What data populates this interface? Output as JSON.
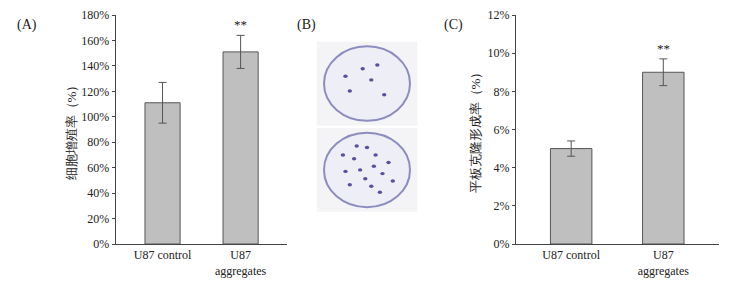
{
  "chart_data": [
    {
      "type": "bar",
      "panel_label": "(A)",
      "y_label": "细胞增殖率（%）",
      "categories": [
        "U87 control",
        "U87 aggregates"
      ],
      "values": [
        111,
        151
      ],
      "errors": [
        16,
        13
      ],
      "color": "#bfbfbf",
      "grid": false,
      "ylim": [
        0,
        180
      ],
      "yticks": [
        {
          "value": 0,
          "label": "0%"
        },
        {
          "value": 20,
          "label": "20%"
        },
        {
          "value": 40,
          "label": "40%"
        },
        {
          "value": 60,
          "label": "60%"
        },
        {
          "value": 80,
          "label": "80%"
        },
        {
          "value": 100,
          "label": "100%"
        },
        {
          "value": 120,
          "label": "120%"
        },
        {
          "value": 140,
          "label": "140%"
        },
        {
          "value": 160,
          "label": "160%"
        },
        {
          "value": 180,
          "label": "180%"
        }
      ],
      "annotations": [
        {
          "category": "U87 aggregates",
          "text": "**"
        }
      ]
    },
    {
      "type": "image",
      "panel_label": "(B)"
    },
    {
      "type": "bar",
      "panel_label": "(C)",
      "y_label": "平板克隆形成率（%）",
      "categories": [
        "U87 control",
        "U87 aggregates"
      ],
      "values": [
        5.0,
        9.0
      ],
      "errors": [
        0.4,
        0.7
      ],
      "color": "#bfbfbf",
      "grid": false,
      "ylim": [
        0,
        12
      ],
      "yticks": [
        {
          "value": 0,
          "label": "0%"
        },
        {
          "value": 2,
          "label": "2%"
        },
        {
          "value": 4,
          "label": "4%"
        },
        {
          "value": 6,
          "label": "6%"
        },
        {
          "value": 8,
          "label": "8%"
        },
        {
          "value": 10,
          "label": "10%"
        },
        {
          "value": 12,
          "label": "12%"
        }
      ],
      "annotations": [
        {
          "category": "U87 aggregates",
          "text": "**"
        }
      ]
    }
  ]
}
